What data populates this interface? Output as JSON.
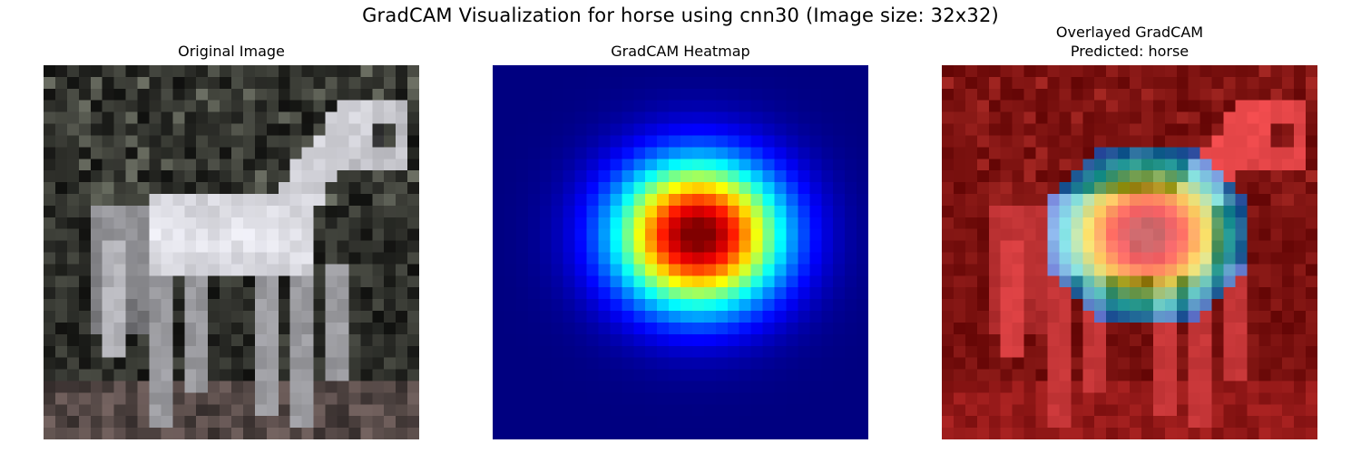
{
  "figure": {
    "suptitle": "GradCAM Visualization for horse using cnn30 (Image size: 32x32)"
  },
  "panels": [
    {
      "title": "Original Image"
    },
    {
      "title": "GradCAM Heatmap"
    },
    {
      "title_lines": [
        "Overlayed GradCAM",
        "Predicted: horse"
      ]
    }
  ],
  "chart_data": {
    "type": "heatmap",
    "image_size": [
      32,
      32
    ],
    "model": "cnn30",
    "predicted_class": "horse",
    "colormap": "jet",
    "axes_visible": false,
    "heatmap_peak_cell": [
      14,
      17
    ],
    "heatmap_spread_cells": [
      4.6,
      5.2
    ]
  },
  "colors": {
    "background": "#ffffff",
    "image_background": "#1e1e19",
    "horse_body": "#e8e8e8"
  }
}
